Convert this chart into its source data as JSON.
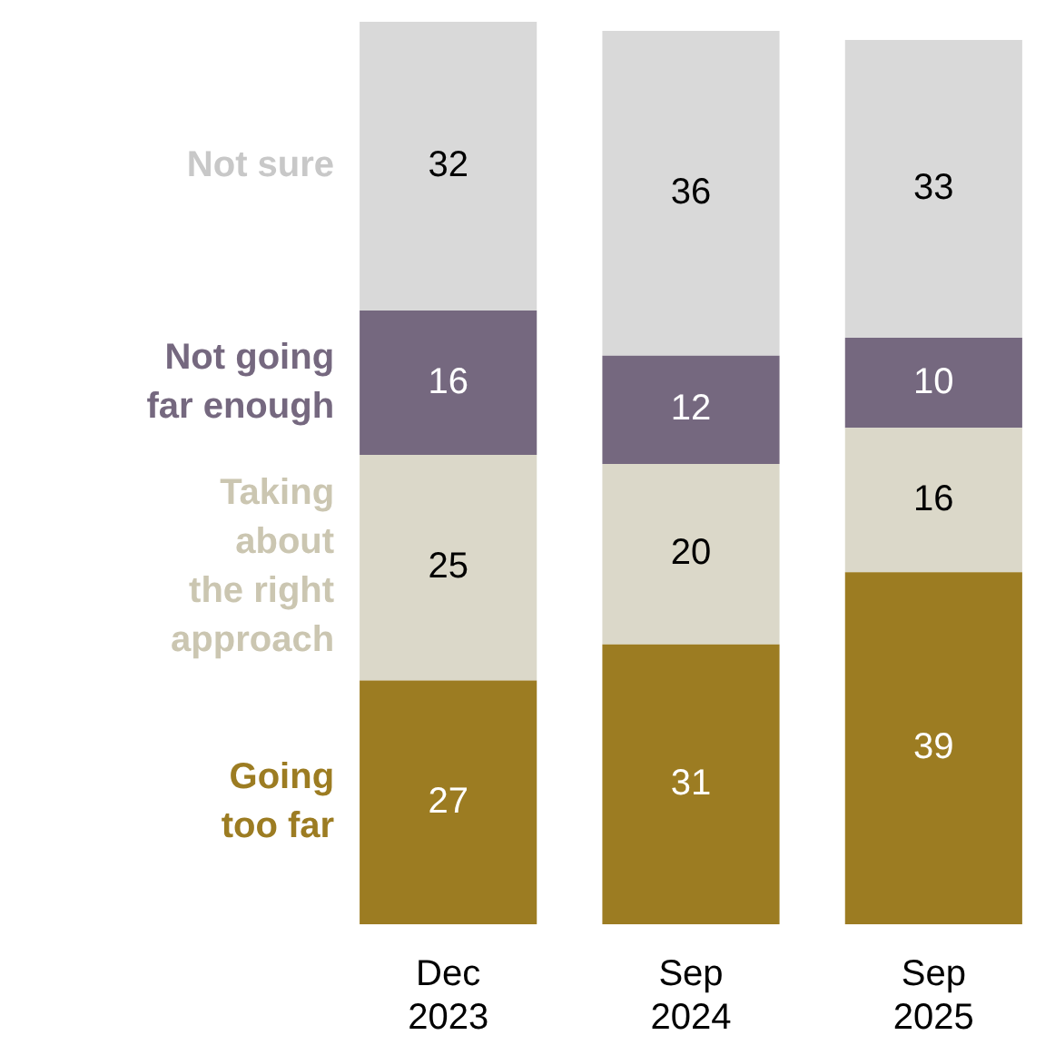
{
  "chart_data": {
    "type": "bar",
    "stacked": true,
    "data_labels": true,
    "legend": false,
    "categories": [
      "Dec 2023",
      "Sep 2024",
      "Sep 2025"
    ],
    "series": [
      {
        "name": "Going\ntoo far",
        "color": "#9c7c22",
        "values": [
          27,
          31,
          39
        ]
      },
      {
        "name": "Taking\nabout\nthe right\napproach",
        "color": "#dbd8c9",
        "values": [
          25,
          20,
          16
        ]
      },
      {
        "name": "Not going\nfar enough",
        "color": "#75687f",
        "values": [
          16,
          12,
          10
        ]
      },
      {
        "name": "Not sure",
        "color": "#d9d9d9",
        "values": [
          32,
          36,
          33
        ]
      }
    ]
  }
}
